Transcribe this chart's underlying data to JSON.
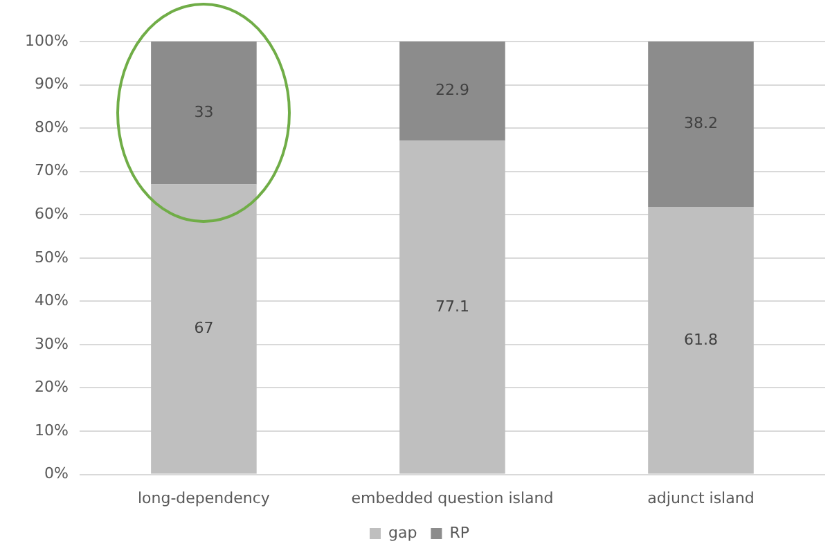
{
  "chart_data": {
    "type": "bar",
    "stacked": true,
    "categories": [
      "long-dependency",
      "embedded question island",
      "adjunct island"
    ],
    "series": [
      {
        "name": "gap",
        "color": "#bfbfbf",
        "values": [
          67,
          77.1,
          61.8
        ]
      },
      {
        "name": "RP",
        "color": "#8c8c8c",
        "values": [
          33,
          22.9,
          38.2
        ]
      }
    ],
    "ylim": [
      0,
      100
    ],
    "yticks": [
      {
        "value": 0,
        "label": "0%"
      },
      {
        "value": 10,
        "label": "10%"
      },
      {
        "value": 20,
        "label": "20%"
      },
      {
        "value": 30,
        "label": "30%"
      },
      {
        "value": 40,
        "label": "40%"
      },
      {
        "value": 50,
        "label": "50%"
      },
      {
        "value": 60,
        "label": "60%"
      },
      {
        "value": 70,
        "label": "70%"
      },
      {
        "value": 80,
        "label": "80%"
      },
      {
        "value": 90,
        "label": "90%"
      },
      {
        "value": 100,
        "label": "100%"
      }
    ],
    "grid": "y",
    "legend": "bottom",
    "data_labels": true
  }
}
